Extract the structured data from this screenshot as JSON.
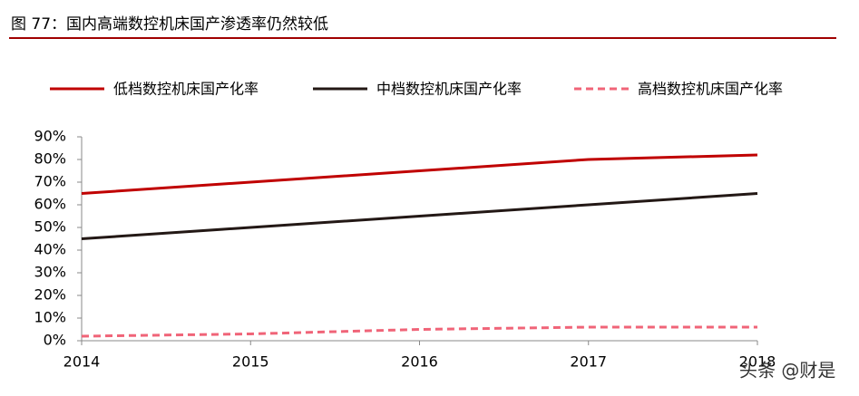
{
  "chart_data": {
    "type": "line",
    "title": "图 77：国内高端数控机床国产渗透率仍然较低",
    "categories": [
      "2014",
      "2015",
      "2016",
      "2017",
      "2018"
    ],
    "series": [
      {
        "name": "低档数控机床国产化率",
        "color": "#c00000",
        "dash": false,
        "values": [
          65,
          70,
          75,
          80,
          82
        ]
      },
      {
        "name": "中档数控机床国产化率",
        "color": "#231815",
        "dash": false,
        "values": [
          45,
          50,
          55,
          60,
          65
        ]
      },
      {
        "name": "高档数控机床国产化率",
        "color": "#f06478",
        "dash": true,
        "values": [
          2,
          3,
          5,
          6,
          6
        ]
      }
    ],
    "ylim": [
      0,
      90
    ],
    "yticks": [
      {
        "value": 0,
        "label": "0%"
      },
      {
        "value": 10,
        "label": "10%"
      },
      {
        "value": 20,
        "label": "20%"
      },
      {
        "value": 30,
        "label": "30%"
      },
      {
        "value": 40,
        "label": "40%"
      },
      {
        "value": 50,
        "label": "50%"
      },
      {
        "value": 60,
        "label": "60%"
      },
      {
        "value": 70,
        "label": "70%"
      },
      {
        "value": 80,
        "label": "80%"
      },
      {
        "value": 90,
        "label": "90%"
      }
    ],
    "grid": false,
    "legend": "top",
    "watermark": "头条 @财是"
  }
}
